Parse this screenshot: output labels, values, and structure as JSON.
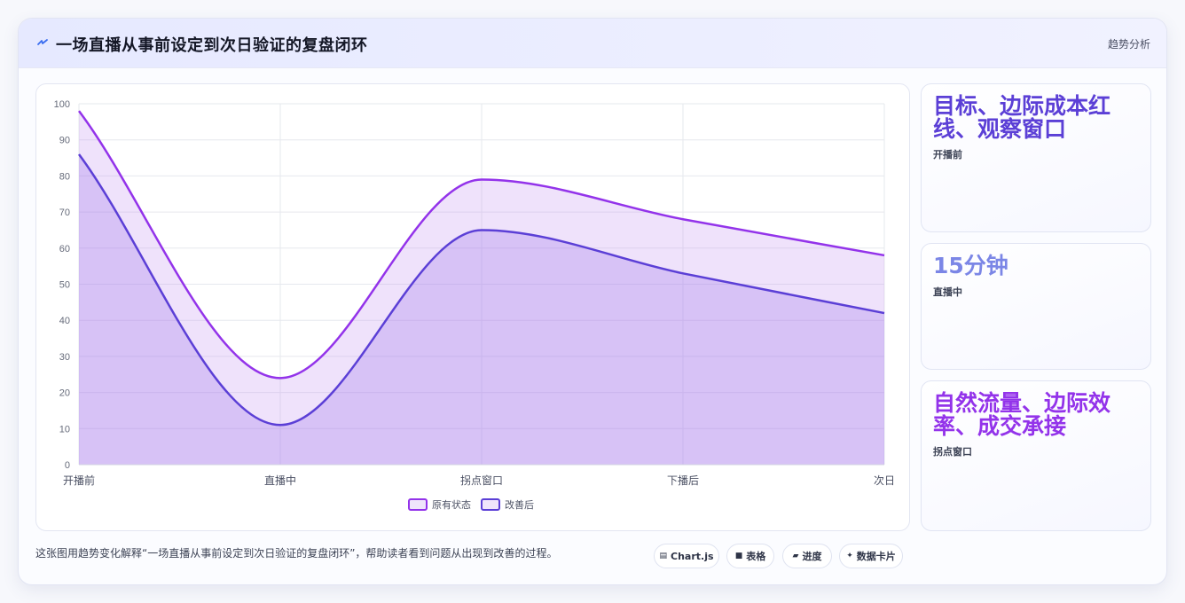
{
  "header": {
    "title": "一场直播从事前设定到次日验证的复盘闭环",
    "tag": "趋势分析",
    "icon": "bolt-icon"
  },
  "chart_data": {
    "type": "area",
    "categories": [
      "开播前",
      "直播中",
      "拐点窗口",
      "下播后",
      "次日"
    ],
    "series": [
      {
        "name": "原有状态",
        "values": [
          98,
          24,
          79,
          68,
          58
        ],
        "color": "#9333ea"
      },
      {
        "name": "改善后",
        "values": [
          86,
          11,
          65,
          53,
          42
        ],
        "color": "#5b3fd6"
      }
    ],
    "ylim": [
      0,
      100
    ],
    "yticks": [
      "0",
      "10",
      "20",
      "30",
      "40",
      "50",
      "60",
      "70",
      "80",
      "90",
      "100"
    ],
    "grid": true,
    "legend": "bottom"
  },
  "side_cards": [
    {
      "value": "目标、边际成本红线、观察窗口",
      "label": "开播前",
      "color": "#5b3fd6"
    },
    {
      "value": "15分钟",
      "label": "直播中",
      "color": "#7b86e6"
    },
    {
      "value": "自然流量、边际效率、成交承接",
      "label": "拐点窗口",
      "color": "#9333ea"
    }
  ],
  "footer": {
    "caption": "这张图用趋势变化解释“一场直播从事前设定到次日验证的复盘闭环”，帮助读者看到问题从出现到改善的过程。",
    "pills": [
      {
        "icon": "chart-icon",
        "label": "Chart.js"
      },
      {
        "icon": "table-icon",
        "label": "表格"
      },
      {
        "icon": "progress-icon",
        "label": "进度"
      },
      {
        "icon": "sparkle-icon",
        "label": "数据卡片"
      }
    ]
  }
}
